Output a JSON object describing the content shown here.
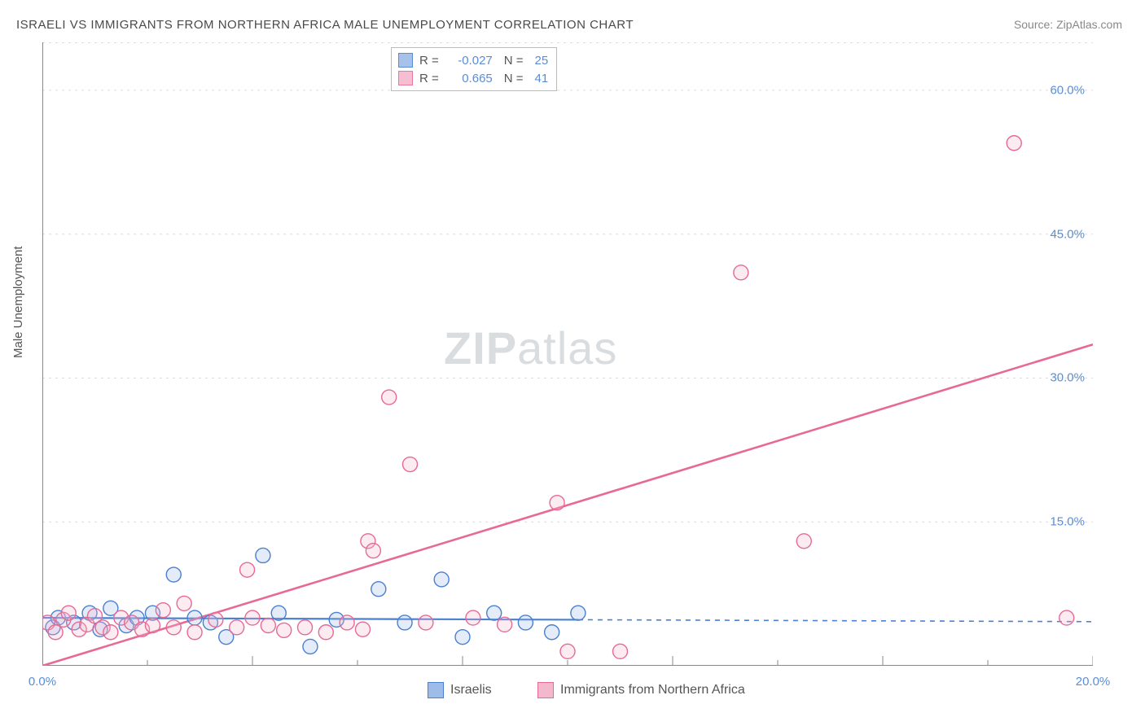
{
  "title": "ISRAELI VS IMMIGRANTS FROM NORTHERN AFRICA MALE UNEMPLOYMENT CORRELATION CHART",
  "source_label": "Source: ZipAtlas.com",
  "watermark": {
    "bold": "ZIP",
    "rest": "atlas"
  },
  "y_axis_label": "Male Unemployment",
  "chart": {
    "type": "scatter",
    "background_color": "#ffffff",
    "grid_color": "#dcdcdc",
    "axis_color": "#888888",
    "tick_color": "#888888",
    "label_color": "#5b8dd6",
    "font_size_labels": 15,
    "xlim": [
      0,
      20
    ],
    "ylim": [
      0,
      65
    ],
    "y_ticks": [
      {
        "v": 15.0,
        "label": "15.0%"
      },
      {
        "v": 30.0,
        "label": "30.0%"
      },
      {
        "v": 45.0,
        "label": "45.0%"
      },
      {
        "v": 60.0,
        "label": "60.0%"
      }
    ],
    "x_ticks_major": [
      0,
      4,
      8,
      12,
      16,
      20
    ],
    "x_ticks_minor": [
      2,
      6,
      10,
      14,
      18
    ],
    "x_tick_labels": [
      {
        "v": 0,
        "label": "0.0%"
      },
      {
        "v": 20,
        "label": "20.0%"
      }
    ],
    "marker_radius": 9,
    "marker_fill_opacity": 0.28,
    "marker_stroke_width": 1.4,
    "series": [
      {
        "id": "israelis",
        "name": "Israelis",
        "color_stroke": "#4a7fd1",
        "color_fill": "#9ebce8",
        "R": "-0.027",
        "N": "25",
        "trend": {
          "solid_end_x": 10.2,
          "y1": 5.0,
          "y2": 4.8,
          "y_end": 4.6,
          "width": 2.2
        },
        "points": [
          [
            0.2,
            4.0
          ],
          [
            0.3,
            5.0
          ],
          [
            0.6,
            4.5
          ],
          [
            0.9,
            5.5
          ],
          [
            1.1,
            3.8
          ],
          [
            1.3,
            6.0
          ],
          [
            1.6,
            4.2
          ],
          [
            1.8,
            5.0
          ],
          [
            2.1,
            5.5
          ],
          [
            2.5,
            9.5
          ],
          [
            2.9,
            5.0
          ],
          [
            3.2,
            4.5
          ],
          [
            3.5,
            3.0
          ],
          [
            4.2,
            11.5
          ],
          [
            4.5,
            5.5
          ],
          [
            5.1,
            2.0
          ],
          [
            5.6,
            4.8
          ],
          [
            6.4,
            8.0
          ],
          [
            6.9,
            4.5
          ],
          [
            7.6,
            9.0
          ],
          [
            8.0,
            3.0
          ],
          [
            8.6,
            5.5
          ],
          [
            9.2,
            4.5
          ],
          [
            9.7,
            3.5
          ],
          [
            10.2,
            5.5
          ]
        ]
      },
      {
        "id": "immigrants",
        "name": "Immigrants from Northern Africa",
        "color_stroke": "#e66a94",
        "color_fill": "#f4b8ce",
        "R": "0.665",
        "N": "41",
        "trend": {
          "y1": 0.0,
          "y2": 33.5,
          "width": 2.6
        },
        "points": [
          [
            0.1,
            4.5
          ],
          [
            0.25,
            3.5
          ],
          [
            0.4,
            4.8
          ],
          [
            0.5,
            5.5
          ],
          [
            0.7,
            3.8
          ],
          [
            0.85,
            4.3
          ],
          [
            1.0,
            5.2
          ],
          [
            1.15,
            4.0
          ],
          [
            1.3,
            3.5
          ],
          [
            1.5,
            5.0
          ],
          [
            1.7,
            4.5
          ],
          [
            1.9,
            3.8
          ],
          [
            2.1,
            4.2
          ],
          [
            2.3,
            5.8
          ],
          [
            2.5,
            4.0
          ],
          [
            2.7,
            6.5
          ],
          [
            2.9,
            3.5
          ],
          [
            3.3,
            4.8
          ],
          [
            3.7,
            4.0
          ],
          [
            3.9,
            10.0
          ],
          [
            4.0,
            5.0
          ],
          [
            4.3,
            4.2
          ],
          [
            4.6,
            3.7
          ],
          [
            5.0,
            4.0
          ],
          [
            5.4,
            3.5
          ],
          [
            5.8,
            4.5
          ],
          [
            6.1,
            3.8
          ],
          [
            6.2,
            13.0
          ],
          [
            6.3,
            12.0
          ],
          [
            6.6,
            28.0
          ],
          [
            7.0,
            21.0
          ],
          [
            7.3,
            4.5
          ],
          [
            8.2,
            5.0
          ],
          [
            8.8,
            4.3
          ],
          [
            9.8,
            17.0
          ],
          [
            10.0,
            1.5
          ],
          [
            11.0,
            1.5
          ],
          [
            13.3,
            41.0
          ],
          [
            14.5,
            13.0
          ],
          [
            18.5,
            54.5
          ],
          [
            19.5,
            5.0
          ]
        ]
      }
    ]
  },
  "legend_top": {
    "R_label": "R =",
    "N_label": "N ="
  },
  "legend_bottom": [
    {
      "series": "israelis"
    },
    {
      "series": "immigrants"
    }
  ]
}
